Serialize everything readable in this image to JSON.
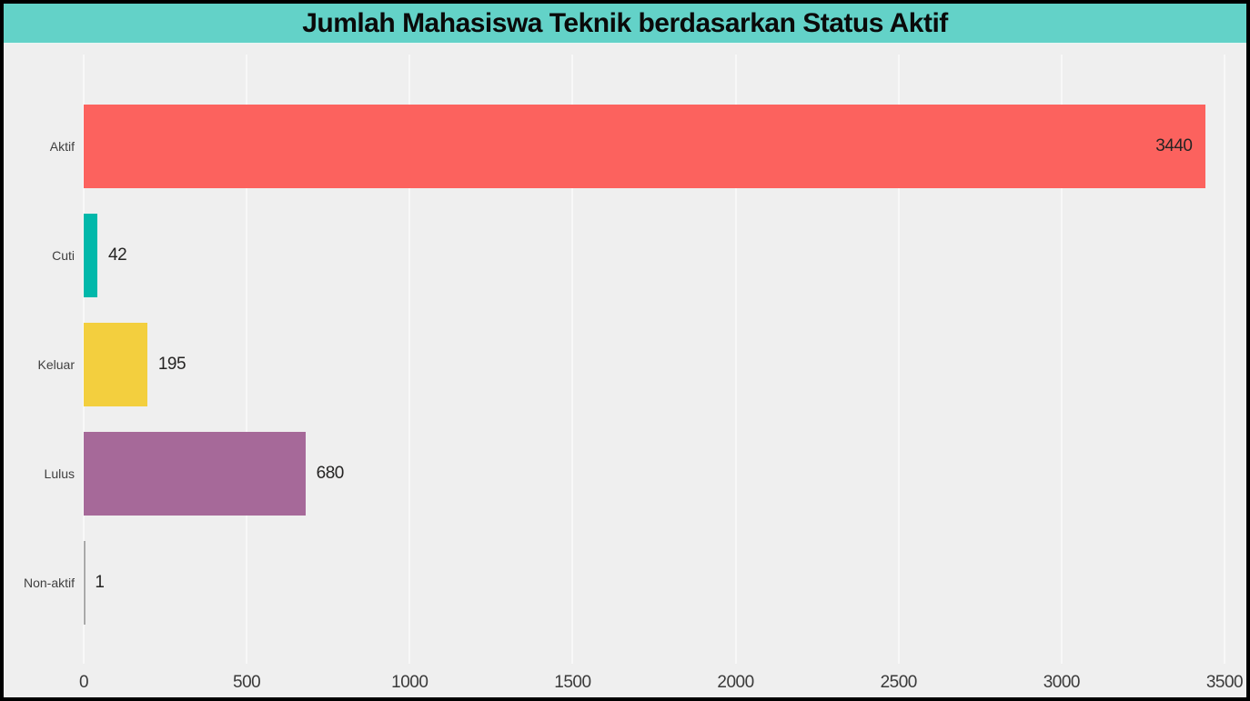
{
  "title": "Jumlah Mahasiswa Teknik berdasarkan Status Aktif",
  "theme": {
    "title_bar_bg": "#63d2c8",
    "title_text_color": "#0a0a0a",
    "chart_bg": "#efefef",
    "outer_border_color": "#000000",
    "gridline_color": "#f8f8f8",
    "category_label_color": "#404040",
    "data_label_color": "#252423",
    "tick_label_color": "#3a3a3a"
  },
  "chart_data": {
    "type": "bar",
    "orientation": "horizontal",
    "title": "Jumlah Mahasiswa Teknik berdasarkan Status Aktif",
    "categories": [
      "Aktif",
      "Cuti",
      "Keluar",
      "Lulus",
      "Non-aktif"
    ],
    "values": [
      3440,
      42,
      195,
      680,
      1
    ],
    "data_labels": [
      "3440",
      "42",
      "195",
      "680",
      "1"
    ],
    "bar_colors": [
      "#fc625e",
      "#01b8aa",
      "#f3cf3e",
      "#a66999",
      "#a9a9a9"
    ],
    "x_ticks": [
      0,
      500,
      1000,
      1500,
      2000,
      2500,
      3000,
      3500
    ],
    "xlim": [
      0,
      3500
    ],
    "xlabel": "",
    "ylabel": "",
    "grid": true,
    "legend": false
  }
}
